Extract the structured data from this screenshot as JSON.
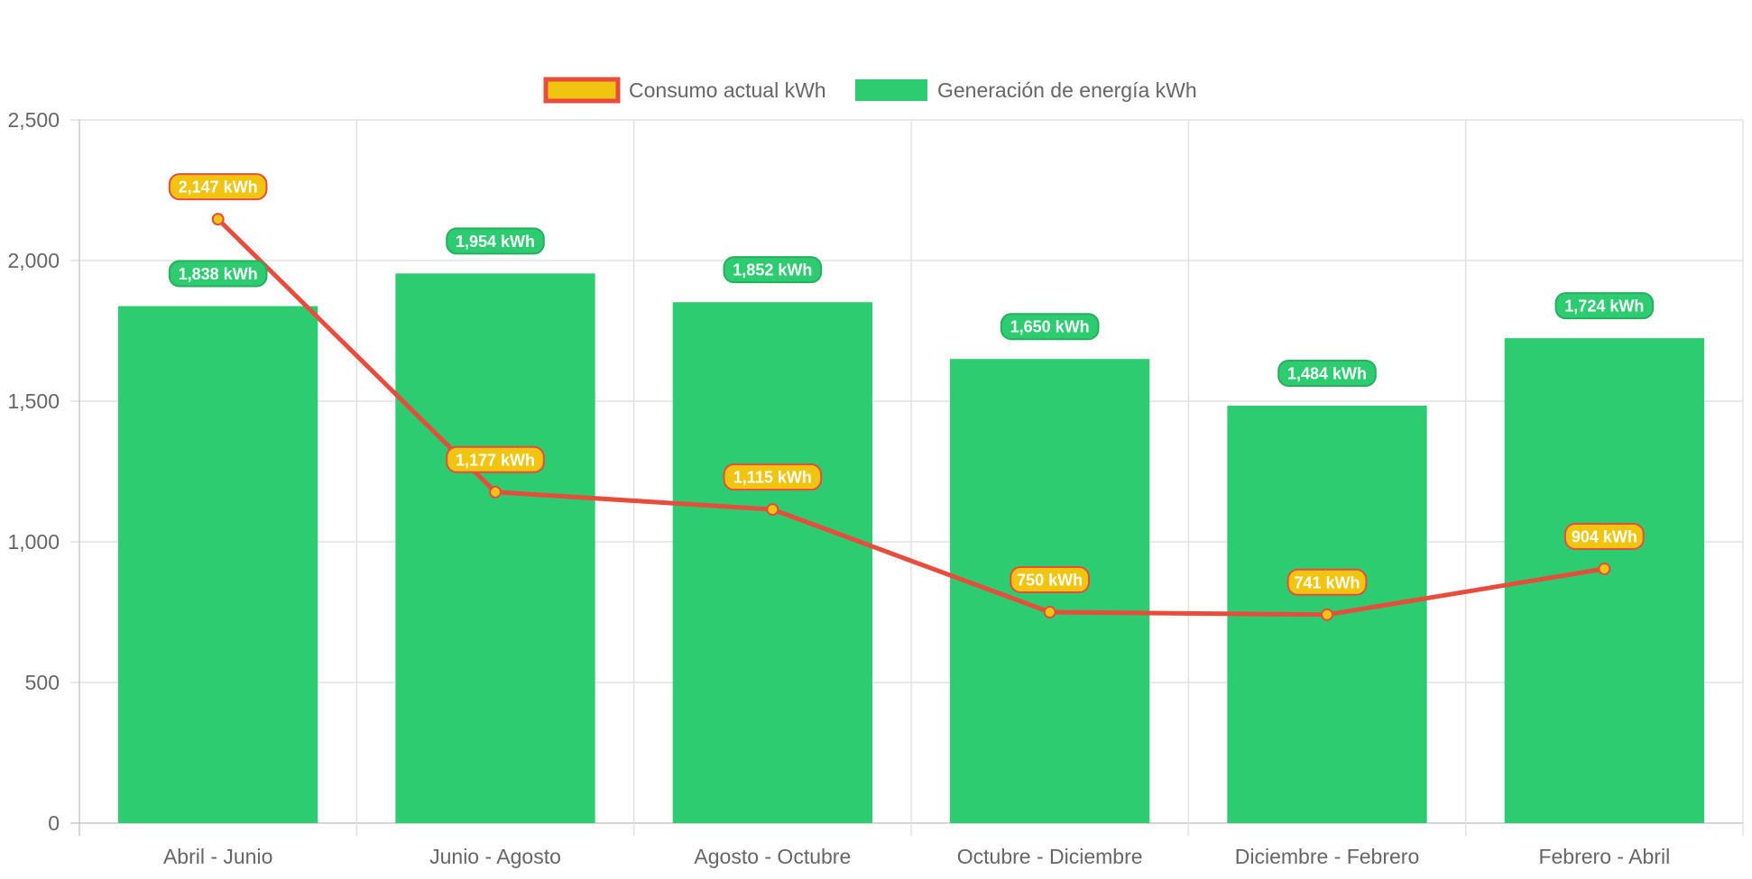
{
  "chart_data": {
    "type": "bar",
    "categories": [
      "Abril - Junio",
      "Junio - Agosto",
      "Agosto - Octubre",
      "Octubre - Diciembre",
      "Diciembre - Febrero",
      "Febrero - Abril"
    ],
    "series": [
      {
        "name": "Consumo actual kWh",
        "type": "line",
        "values": [
          2147,
          1177,
          1115,
          750,
          741,
          904
        ],
        "labels": [
          "2,147 kWh",
          "1,177 kWh",
          "1,115 kWh",
          "750 kWh",
          "741 kWh",
          "904 kWh"
        ],
        "color": "#e74c3c",
        "fill_color": "#f1c40f"
      },
      {
        "name": "Generación de energía kWh",
        "type": "bar",
        "values": [
          1838,
          1954,
          1852,
          1650,
          1484,
          1724
        ],
        "labels": [
          "1,838 kWh",
          "1,954 kWh",
          "1,852 kWh",
          "1,650 kWh",
          "1,484 kWh",
          "1,724 kWh"
        ],
        "color": "#2ecc71"
      }
    ],
    "y_ticks": [
      "0",
      "500",
      "1,000",
      "1,500",
      "2,000",
      "2,500"
    ],
    "ylim": [
      0,
      2500
    ],
    "grid": true,
    "legend_position": "top-center",
    "title": "",
    "xlabel": "",
    "ylabel": ""
  }
}
